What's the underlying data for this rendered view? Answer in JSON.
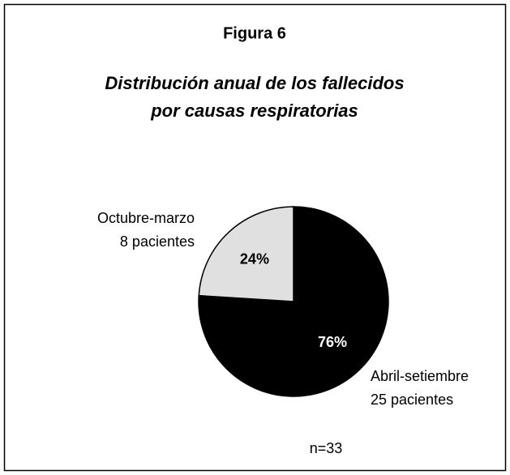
{
  "chart_data": {
    "type": "pie",
    "title": "Figura 6",
    "subtitle": [
      "Distribución anual de los fallecidos",
      "por causas respiratorias"
    ],
    "categories": [
      "Abril-setiembre",
      "Octubre-marzo"
    ],
    "category_notes": [
      "25 pacientes",
      "8 pacientes"
    ],
    "values": [
      76,
      24
    ],
    "value_labels": [
      "76%",
      "24%"
    ],
    "colors": [
      "#000000",
      "#e0e0e0"
    ],
    "value_label_colors": [
      "#ffffff",
      "#000000"
    ],
    "annotation": "n=33"
  }
}
